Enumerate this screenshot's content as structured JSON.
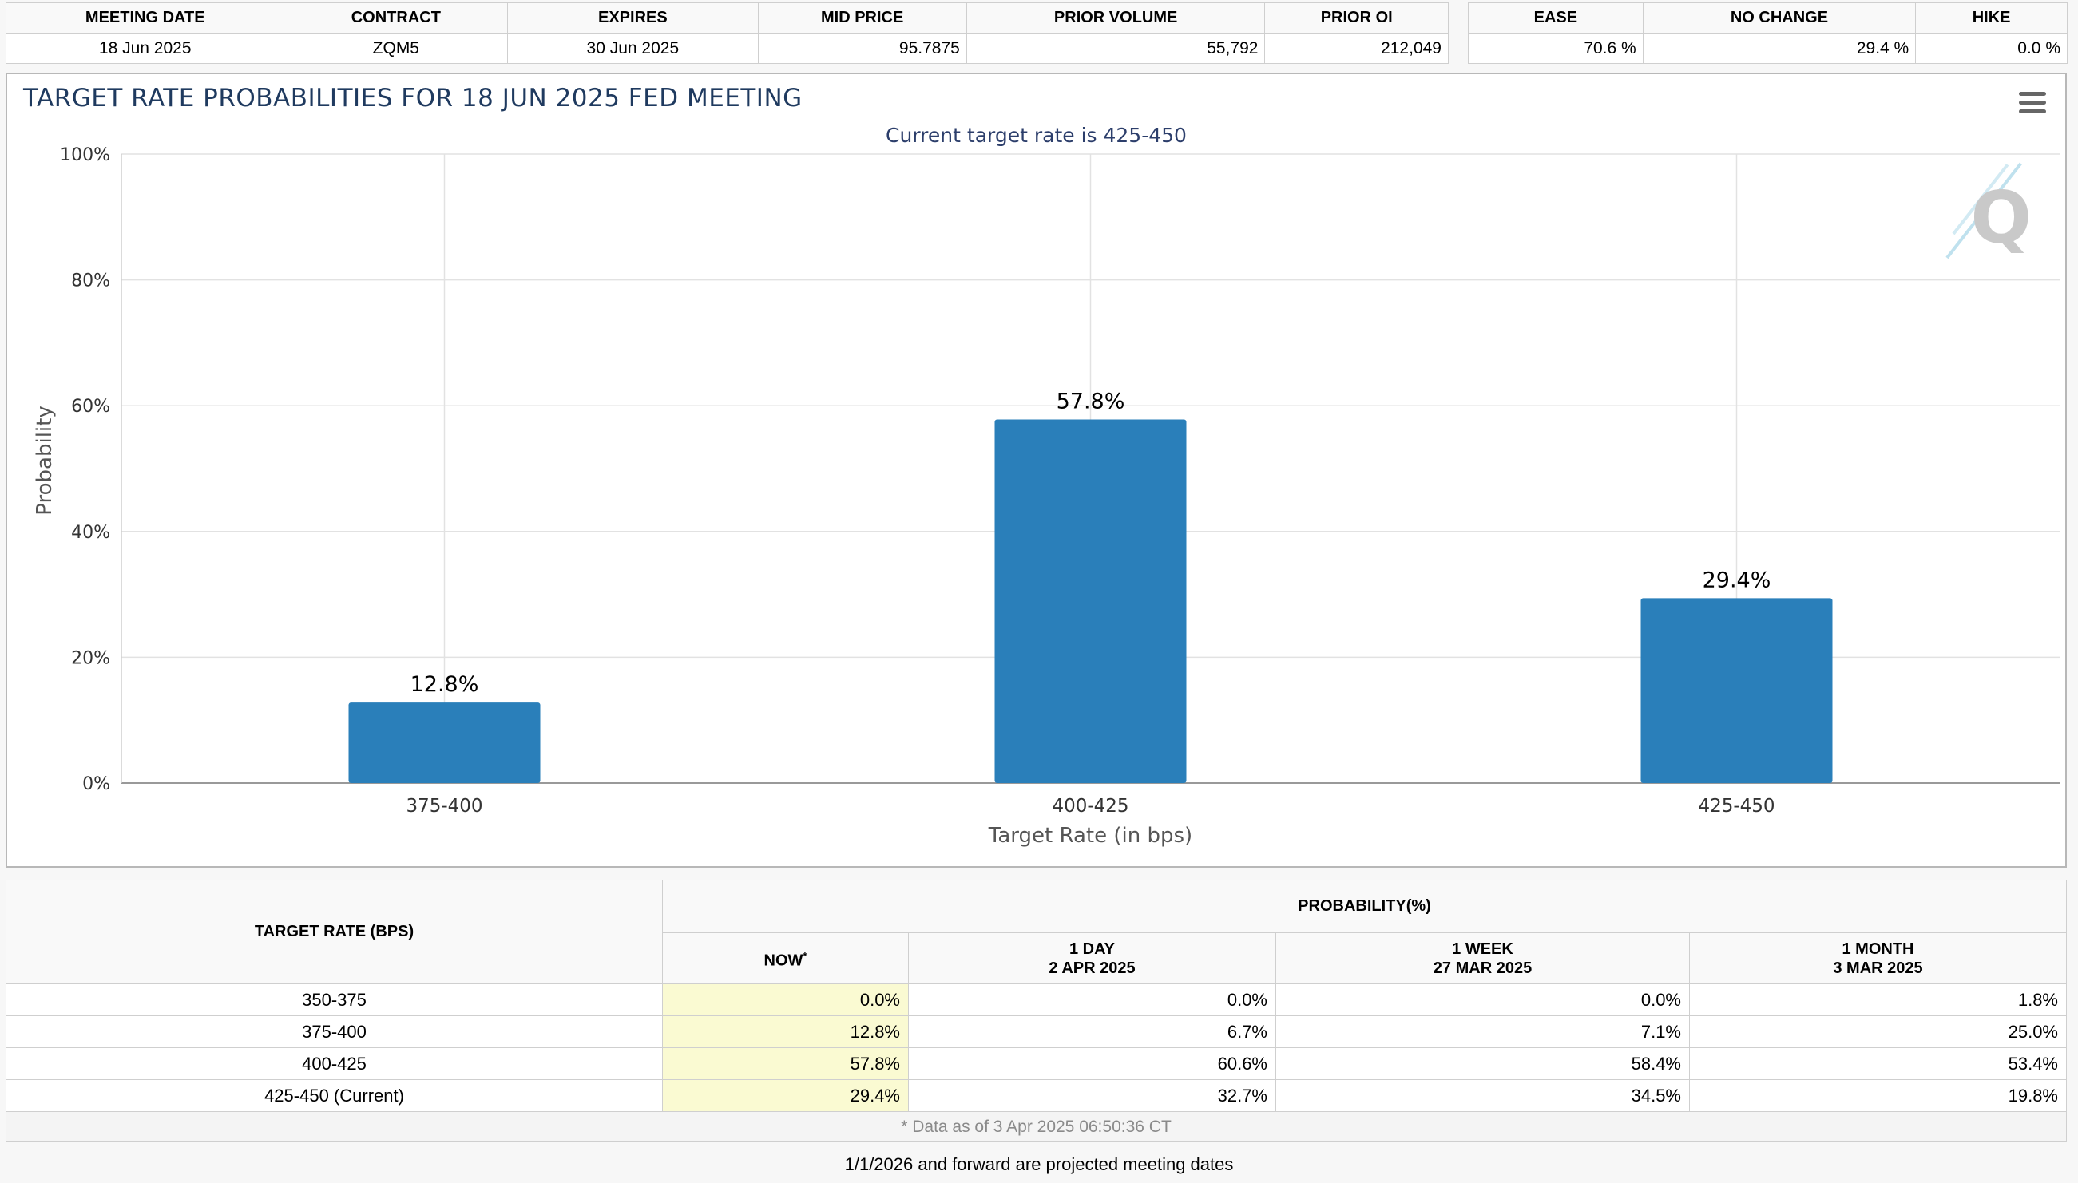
{
  "meeting_table": {
    "headers": [
      "MEETING DATE",
      "CONTRACT",
      "EXPIRES",
      "MID PRICE",
      "PRIOR VOLUME",
      "PRIOR OI"
    ],
    "row": [
      "18 Jun 2025",
      "ZQM5",
      "30 Jun 2025",
      "95.7875",
      "55,792",
      "212,049"
    ]
  },
  "sentiment_table": {
    "headers": [
      "EASE",
      "NO CHANGE",
      "HIKE"
    ],
    "row": [
      "70.6 %",
      "29.4 %",
      "0.0 %"
    ]
  },
  "chart": {
    "title": "TARGET RATE PROBABILITIES FOR 18 JUN 2025 FED MEETING",
    "subtitle": "Current target rate is 425-450",
    "menu_icon": "hamburger-menu-icon",
    "watermark_icon": "q-logo-icon"
  },
  "chart_data": {
    "type": "bar",
    "title": "TARGET RATE PROBABILITIES FOR 18 JUN 2025 FED MEETING",
    "subtitle": "Current target rate is 425-450",
    "categories": [
      "375-400",
      "400-425",
      "425-450"
    ],
    "values": [
      12.8,
      57.8,
      29.4
    ],
    "data_labels": [
      "12.8%",
      "57.8%",
      "29.4%"
    ],
    "xlabel": "Target Rate (in bps)",
    "ylabel": "Probability",
    "ylim": [
      0,
      100
    ],
    "yticks": [
      0,
      20,
      40,
      60,
      80,
      100
    ],
    "ytick_labels": [
      "0%",
      "20%",
      "40%",
      "60%",
      "80%",
      "100%"
    ],
    "bar_color": "#2a7fba",
    "grid": true,
    "legend": "none"
  },
  "prob_table": {
    "rate_header": "TARGET RATE (BPS)",
    "prob_header": "PROBABILITY(%)",
    "columns": [
      {
        "line1": "NOW",
        "line2": ""
      },
      {
        "line1": "1 DAY",
        "line2": "2 APR 2025"
      },
      {
        "line1": "1 WEEK",
        "line2": "27 MAR 2025"
      },
      {
        "line1": "1 MONTH",
        "line2": "3 MAR 2025"
      }
    ],
    "rows": [
      {
        "rate": "350-375",
        "values": [
          "0.0%",
          "0.0%",
          "0.0%",
          "1.8%"
        ]
      },
      {
        "rate": "375-400",
        "values": [
          "12.8%",
          "6.7%",
          "7.1%",
          "25.0%"
        ]
      },
      {
        "rate": "400-425",
        "values": [
          "57.8%",
          "60.6%",
          "58.4%",
          "53.4%"
        ]
      },
      {
        "rate": "425-450 (Current)",
        "values": [
          "29.4%",
          "32.7%",
          "34.5%",
          "19.8%"
        ]
      }
    ],
    "footnote": "* Data as of 3 Apr 2025 06:50:36 CT",
    "now_highlight_color": "#fafad2"
  },
  "footer_note": "1/1/2026 and forward are projected meeting dates"
}
